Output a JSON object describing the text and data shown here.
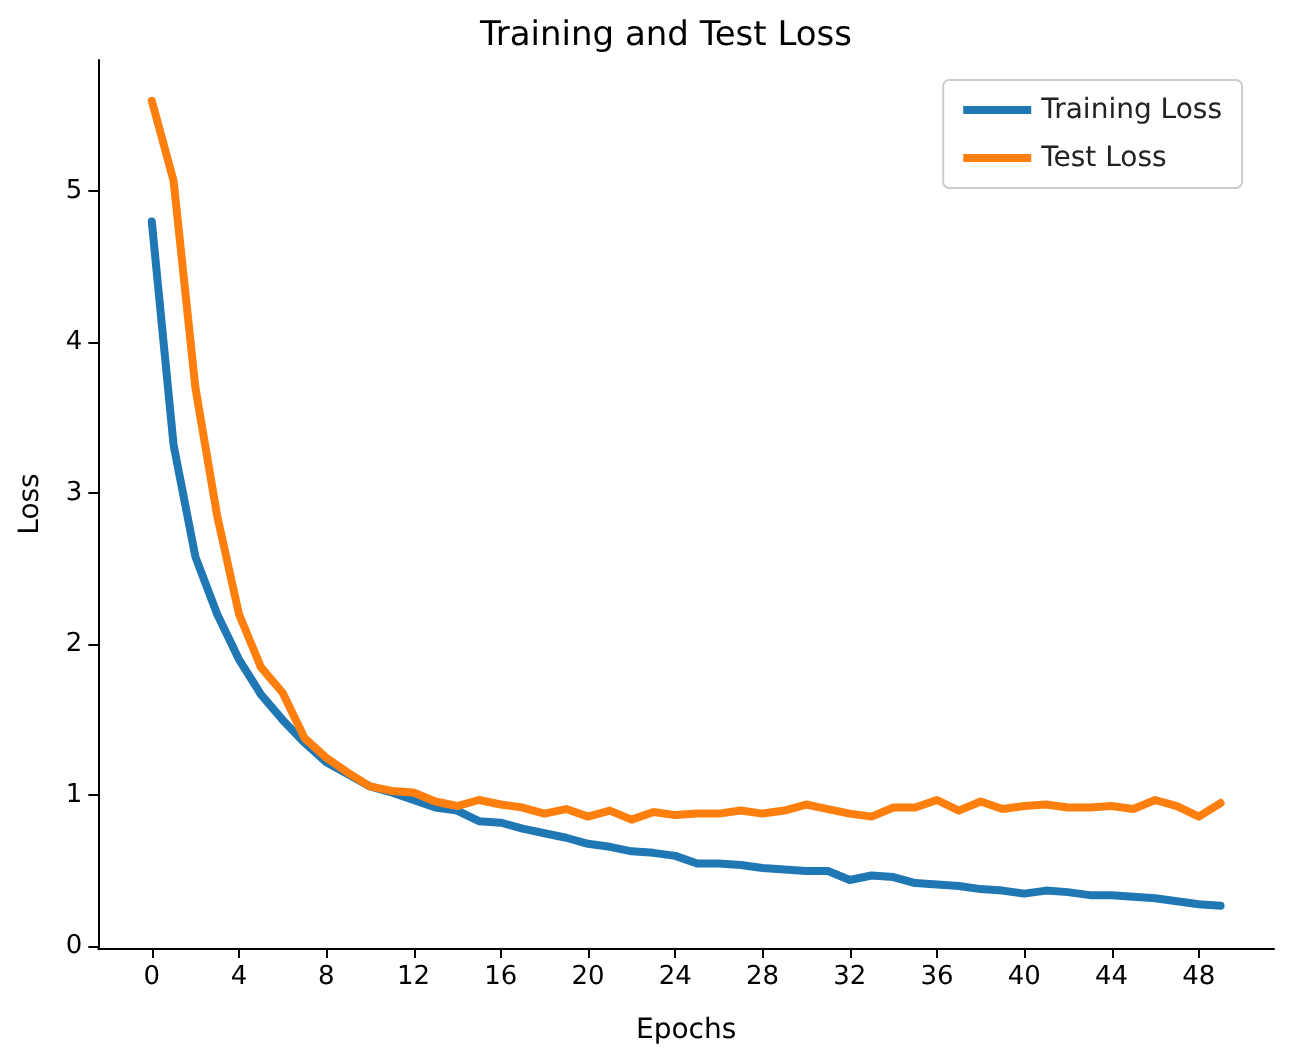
{
  "chart_data": {
    "type": "line",
    "title": "Training and Test Loss",
    "xlabel": "Epochs",
    "ylabel": "Loss",
    "x": [
      0,
      1,
      2,
      3,
      4,
      5,
      6,
      7,
      8,
      9,
      10,
      11,
      12,
      13,
      14,
      15,
      16,
      17,
      18,
      19,
      20,
      21,
      22,
      23,
      24,
      25,
      26,
      27,
      28,
      29,
      30,
      31,
      32,
      33,
      34,
      35,
      36,
      37,
      38,
      39,
      40,
      41,
      42,
      43,
      44,
      45,
      46,
      47,
      48,
      49
    ],
    "series": [
      {
        "name": "Training Loss",
        "color": "#1f77b4",
        "values": [
          4.8,
          3.32,
          2.58,
          2.2,
          1.9,
          1.67,
          1.5,
          1.35,
          1.22,
          1.14,
          1.06,
          1.02,
          0.97,
          0.92,
          0.9,
          0.83,
          0.82,
          0.78,
          0.75,
          0.72,
          0.68,
          0.66,
          0.63,
          0.62,
          0.6,
          0.55,
          0.55,
          0.54,
          0.52,
          0.51,
          0.5,
          0.5,
          0.44,
          0.47,
          0.46,
          0.42,
          0.41,
          0.4,
          0.38,
          0.37,
          0.35,
          0.37,
          0.36,
          0.34,
          0.34,
          0.33,
          0.32,
          0.3,
          0.28,
          0.27
        ]
      },
      {
        "name": "Test Loss",
        "color": "#ff7f0e",
        "values": [
          5.6,
          5.07,
          3.7,
          2.85,
          2.2,
          1.85,
          1.68,
          1.38,
          1.25,
          1.15,
          1.06,
          1.03,
          1.02,
          0.96,
          0.93,
          0.97,
          0.94,
          0.92,
          0.88,
          0.91,
          0.86,
          0.9,
          0.84,
          0.89,
          0.87,
          0.88,
          0.88,
          0.9,
          0.88,
          0.9,
          0.94,
          0.91,
          0.88,
          0.86,
          0.92,
          0.92,
          0.97,
          0.9,
          0.96,
          0.91,
          0.93,
          0.94,
          0.92,
          0.92,
          0.93,
          0.91,
          0.97,
          0.93,
          0.86,
          0.95
        ]
      }
    ],
    "xlim": [
      -2.45,
      51.45
    ],
    "xticks": [
      0,
      4,
      8,
      12,
      16,
      20,
      24,
      28,
      32,
      36,
      40,
      44,
      48
    ],
    "ylim": [
      -0.01,
      5.87
    ],
    "yticks": [
      0,
      1,
      2,
      3,
      4,
      5
    ],
    "grid": false,
    "legend": "top right",
    "marker": "none",
    "line_style": "solid"
  }
}
